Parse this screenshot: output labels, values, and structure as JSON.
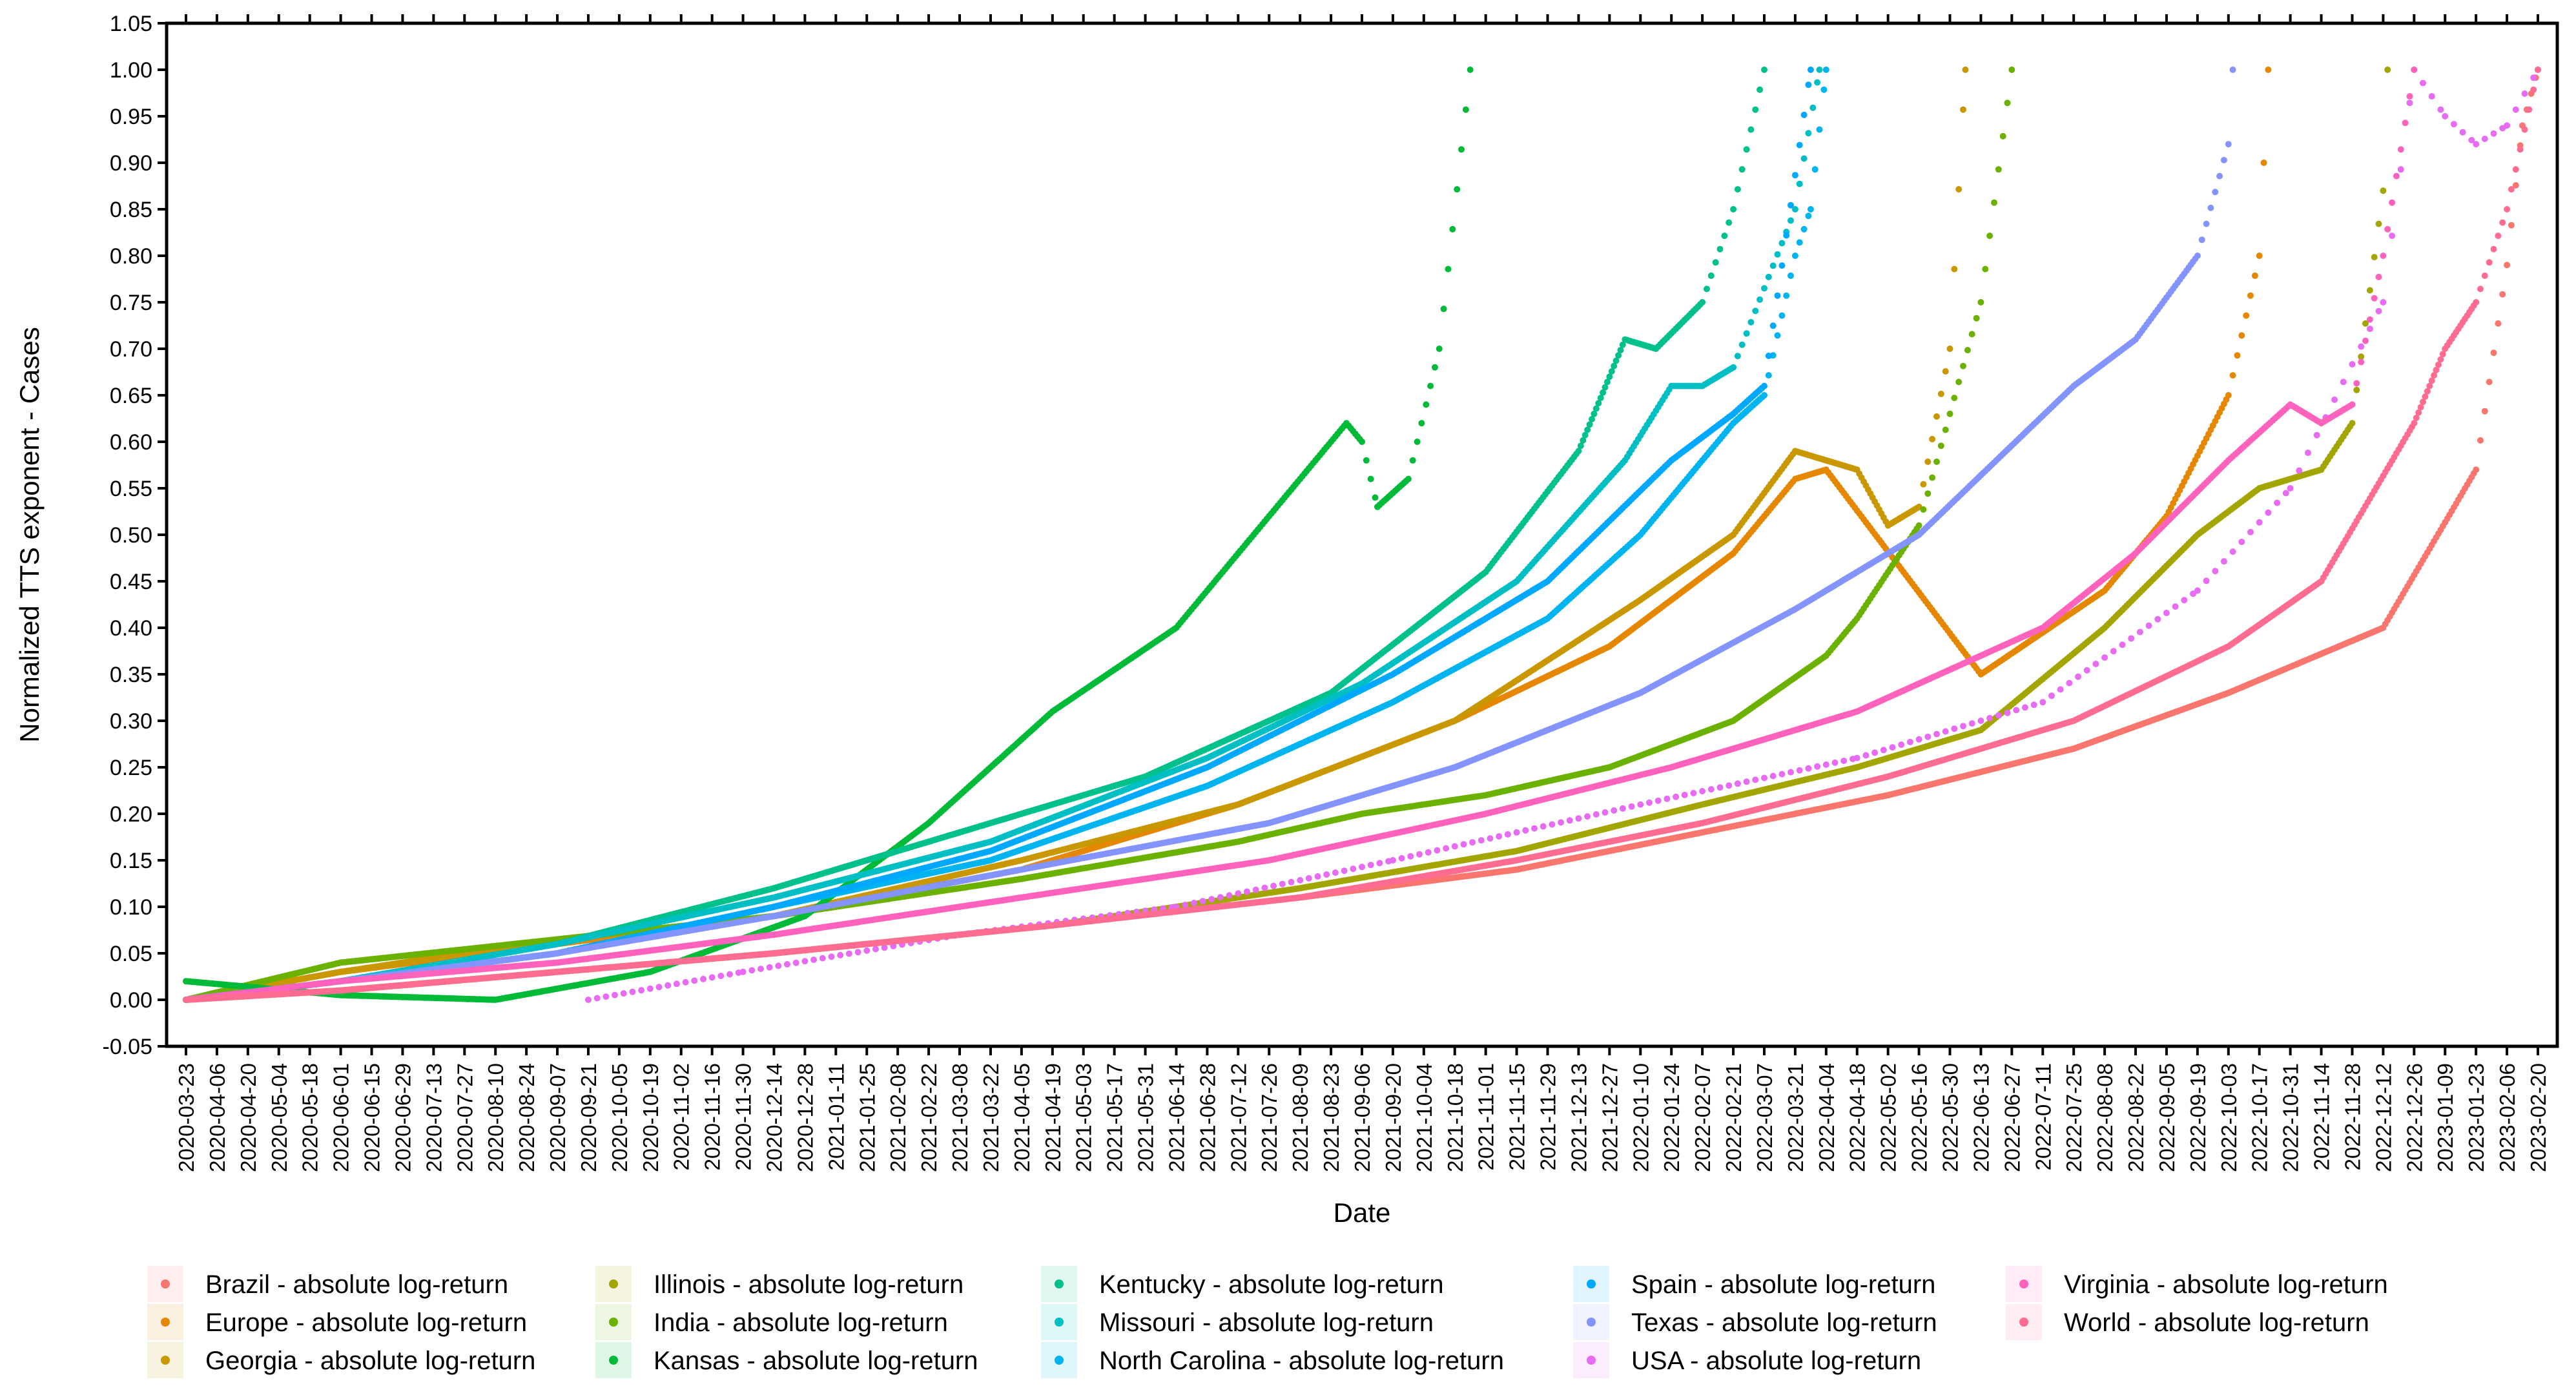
{
  "chart_data": {
    "type": "scatter",
    "title": "",
    "xlabel": "Date",
    "ylabel": "Normalized TTS exponent - Cases",
    "xlim": [
      "2020-03-23",
      "2023-02-20"
    ],
    "ylim": [
      -0.05,
      1.05
    ],
    "y_ticks": [
      "-0.05",
      "0.00",
      "0.05",
      "0.10",
      "0.15",
      "0.20",
      "0.25",
      "0.30",
      "0.35",
      "0.40",
      "0.45",
      "0.50",
      "0.55",
      "0.60",
      "0.65",
      "0.70",
      "0.75",
      "0.80",
      "0.85",
      "0.90",
      "0.95",
      "1.00",
      "1.05"
    ],
    "x_ticks": [
      "2020-03-23",
      "2020-04-06",
      "2020-04-20",
      "2020-05-04",
      "2020-05-18",
      "2020-06-01",
      "2020-06-15",
      "2020-06-29",
      "2020-07-13",
      "2020-07-27",
      "2020-08-10",
      "2020-08-24",
      "2020-09-07",
      "2020-09-21",
      "2020-10-05",
      "2020-10-19",
      "2020-11-02",
      "2020-11-16",
      "2020-11-30",
      "2020-12-14",
      "2020-12-28",
      "2021-01-11",
      "2021-01-25",
      "2021-02-08",
      "2021-02-22",
      "2021-03-08",
      "2021-03-22",
      "2021-04-05",
      "2021-04-19",
      "2021-05-03",
      "2021-05-17",
      "2021-05-31",
      "2021-06-14",
      "2021-06-28",
      "2021-07-12",
      "2021-07-26",
      "2021-08-09",
      "2021-08-23",
      "2021-09-06",
      "2021-09-20",
      "2021-10-04",
      "2021-10-18",
      "2021-11-01",
      "2021-11-15",
      "2021-11-29",
      "2021-12-13",
      "2021-12-27",
      "2022-01-10",
      "2022-01-24",
      "2022-02-07",
      "2022-02-21",
      "2022-03-07",
      "2022-03-21",
      "2022-04-04",
      "2022-04-18",
      "2022-05-02",
      "2022-05-16",
      "2022-05-30",
      "2022-06-13",
      "2022-06-27",
      "2022-07-11",
      "2022-07-25",
      "2022-08-08",
      "2022-08-22",
      "2022-09-05",
      "2022-09-19",
      "2022-10-03",
      "2022-10-17",
      "2022-10-31",
      "2022-11-14",
      "2022-11-28",
      "2022-12-12",
      "2022-12-26",
      "2023-01-09",
      "2023-01-23",
      "2023-02-06",
      "2023-02-20"
    ],
    "grid": false,
    "legend_position": "bottom",
    "series": [
      {
        "name": "Brazil - absolute log-return",
        "color": "#F8766D",
        "points": [
          [
            "2020-03-23",
            0.0
          ],
          [
            "2020-06-01",
            0.01
          ],
          [
            "2020-09-07",
            0.03
          ],
          [
            "2020-12-14",
            0.05
          ],
          [
            "2021-04-19",
            0.08
          ],
          [
            "2021-08-09",
            0.11
          ],
          [
            "2021-11-15",
            0.14
          ],
          [
            "2022-02-07",
            0.18
          ],
          [
            "2022-05-02",
            0.22
          ],
          [
            "2022-07-25",
            0.27
          ],
          [
            "2022-10-03",
            0.33
          ],
          [
            "2022-12-12",
            0.4
          ],
          [
            "2023-01-23",
            0.57
          ],
          [
            "2023-02-06",
            0.79
          ],
          [
            "2023-02-13",
            0.94
          ],
          [
            "2023-02-20",
            1.0
          ]
        ]
      },
      {
        "name": "Europe - absolute log-return",
        "color": "#E58700",
        "points": [
          [
            "2020-03-23",
            0.0
          ],
          [
            "2020-06-01",
            0.03
          ],
          [
            "2020-09-07",
            0.06
          ],
          [
            "2020-12-14",
            0.09
          ],
          [
            "2021-04-05",
            0.14
          ],
          [
            "2021-07-12",
            0.21
          ],
          [
            "2021-10-18",
            0.3
          ],
          [
            "2021-12-27",
            0.38
          ],
          [
            "2022-02-21",
            0.48
          ],
          [
            "2022-03-21",
            0.56
          ],
          [
            "2022-04-04",
            0.57
          ],
          [
            "2022-06-13",
            0.35
          ],
          [
            "2022-08-08",
            0.44
          ],
          [
            "2022-09-05",
            0.52
          ],
          [
            "2022-10-03",
            0.65
          ],
          [
            "2022-10-17",
            0.8
          ],
          [
            "2022-10-21",
            1.0
          ]
        ]
      },
      {
        "name": "Georgia - absolute log-return",
        "color": "#C99800",
        "points": [
          [
            "2020-03-23",
            0.0
          ],
          [
            "2020-06-01",
            0.03
          ],
          [
            "2020-09-07",
            0.065
          ],
          [
            "2020-12-14",
            0.09
          ],
          [
            "2021-04-05",
            0.15
          ],
          [
            "2021-07-12",
            0.21
          ],
          [
            "2021-10-18",
            0.3
          ],
          [
            "2022-01-10",
            0.43
          ],
          [
            "2022-02-21",
            0.5
          ],
          [
            "2022-03-21",
            0.59
          ],
          [
            "2022-04-04",
            0.58
          ],
          [
            "2022-04-18",
            0.57
          ],
          [
            "2022-05-02",
            0.51
          ],
          [
            "2022-05-16",
            0.53
          ],
          [
            "2022-05-30",
            0.7
          ],
          [
            "2022-06-06",
            1.0
          ]
        ]
      },
      {
        "name": "Illinois - absolute log-return",
        "color": "#A3A500",
        "points": [
          [
            "2020-03-23",
            0.0
          ],
          [
            "2020-06-01",
            0.01
          ],
          [
            "2020-09-07",
            0.03
          ],
          [
            "2020-12-14",
            0.05
          ],
          [
            "2021-04-19",
            0.08
          ],
          [
            "2021-08-09",
            0.12
          ],
          [
            "2021-11-15",
            0.16
          ],
          [
            "2022-02-07",
            0.21
          ],
          [
            "2022-04-18",
            0.25
          ],
          [
            "2022-06-13",
            0.29
          ],
          [
            "2022-08-08",
            0.4
          ],
          [
            "2022-09-19",
            0.5
          ],
          [
            "2022-10-17",
            0.55
          ],
          [
            "2022-11-14",
            0.57
          ],
          [
            "2022-11-28",
            0.62
          ],
          [
            "2022-12-12",
            0.87
          ],
          [
            "2022-12-14",
            1.0
          ]
        ]
      },
      {
        "name": "India - absolute log-return",
        "color": "#6BB100",
        "points": [
          [
            "2020-03-23",
            0.0
          ],
          [
            "2020-06-01",
            0.04
          ],
          [
            "2020-09-07",
            0.065
          ],
          [
            "2020-12-14",
            0.09
          ],
          [
            "2021-04-05",
            0.13
          ],
          [
            "2021-07-12",
            0.17
          ],
          [
            "2021-09-06",
            0.2
          ],
          [
            "2021-11-01",
            0.22
          ],
          [
            "2021-12-27",
            0.25
          ],
          [
            "2022-02-21",
            0.3
          ],
          [
            "2022-04-04",
            0.37
          ],
          [
            "2022-04-18",
            0.41
          ],
          [
            "2022-05-16",
            0.51
          ],
          [
            "2022-06-13",
            0.75
          ],
          [
            "2022-06-27",
            1.0
          ]
        ]
      },
      {
        "name": "Kansas - absolute log-return",
        "color": "#00BA38",
        "points": [
          [
            "2020-03-23",
            0.02
          ],
          [
            "2020-06-01",
            0.005
          ],
          [
            "2020-08-10",
            0.0
          ],
          [
            "2020-10-19",
            0.03
          ],
          [
            "2020-12-28",
            0.09
          ],
          [
            "2021-02-22",
            0.19
          ],
          [
            "2021-04-19",
            0.31
          ],
          [
            "2021-06-14",
            0.4
          ],
          [
            "2021-07-12",
            0.48
          ],
          [
            "2021-08-09",
            0.56
          ],
          [
            "2021-08-30",
            0.62
          ],
          [
            "2021-09-06",
            0.6
          ],
          [
            "2021-09-13",
            0.53
          ],
          [
            "2021-09-27",
            0.56
          ],
          [
            "2021-10-11",
            0.7
          ],
          [
            "2021-10-25",
            1.0
          ]
        ]
      },
      {
        "name": "Kentucky - absolute log-return",
        "color": "#00C08B",
        "points": [
          [
            "2020-03-23",
            0.0
          ],
          [
            "2020-06-01",
            0.02
          ],
          [
            "2020-09-07",
            0.06
          ],
          [
            "2020-12-14",
            0.12
          ],
          [
            "2021-03-08",
            0.18
          ],
          [
            "2021-05-31",
            0.24
          ],
          [
            "2021-08-23",
            0.33
          ],
          [
            "2021-11-01",
            0.46
          ],
          [
            "2021-12-13",
            0.59
          ],
          [
            "2022-01-03",
            0.71
          ],
          [
            "2022-01-17",
            0.7
          ],
          [
            "2022-02-07",
            0.75
          ],
          [
            "2022-02-21",
            0.85
          ],
          [
            "2022-03-07",
            1.0
          ]
        ]
      },
      {
        "name": "Missouri - absolute log-return",
        "color": "#00BFC4",
        "points": [
          [
            "2020-03-23",
            0.0
          ],
          [
            "2020-06-01",
            0.02
          ],
          [
            "2020-09-07",
            0.06
          ],
          [
            "2020-12-14",
            0.11
          ],
          [
            "2021-03-22",
            0.17
          ],
          [
            "2021-06-28",
            0.26
          ],
          [
            "2021-09-06",
            0.34
          ],
          [
            "2021-11-15",
            0.45
          ],
          [
            "2022-01-03",
            0.58
          ],
          [
            "2022-01-24",
            0.66
          ],
          [
            "2022-02-07",
            0.66
          ],
          [
            "2022-02-21",
            0.68
          ],
          [
            "2022-03-21",
            0.85
          ],
          [
            "2022-04-01",
            1.0
          ]
        ]
      },
      {
        "name": "North Carolina - absolute log-return",
        "color": "#00B4F0",
        "points": [
          [
            "2020-03-23",
            0.0
          ],
          [
            "2020-06-01",
            0.02
          ],
          [
            "2020-09-07",
            0.05
          ],
          [
            "2020-12-14",
            0.1
          ],
          [
            "2021-03-22",
            0.15
          ],
          [
            "2021-06-28",
            0.23
          ],
          [
            "2021-09-20",
            0.32
          ],
          [
            "2021-11-29",
            0.41
          ],
          [
            "2022-01-10",
            0.5
          ],
          [
            "2022-02-07",
            0.58
          ],
          [
            "2022-02-21",
            0.62
          ],
          [
            "2022-03-07",
            0.65
          ],
          [
            "2022-03-21",
            0.8
          ],
          [
            "2022-03-28",
            0.85
          ],
          [
            "2022-04-04",
            1.0
          ]
        ]
      },
      {
        "name": "Spain - absolute log-return",
        "color": "#00A9FF",
        "points": [
          [
            "2020-03-23",
            0.0
          ],
          [
            "2020-06-01",
            0.02
          ],
          [
            "2020-09-07",
            0.05
          ],
          [
            "2020-12-14",
            0.1
          ],
          [
            "2021-03-22",
            0.16
          ],
          [
            "2021-06-28",
            0.25
          ],
          [
            "2021-09-20",
            0.35
          ],
          [
            "2021-11-29",
            0.45
          ],
          [
            "2022-01-24",
            0.58
          ],
          [
            "2022-02-21",
            0.63
          ],
          [
            "2022-03-07",
            0.66
          ],
          [
            "2022-03-28",
            1.0
          ]
        ]
      },
      {
        "name": "Texas - absolute log-return",
        "color": "#8494FF",
        "points": [
          [
            "2020-03-23",
            0.0
          ],
          [
            "2020-06-01",
            0.02
          ],
          [
            "2020-09-07",
            0.05
          ],
          [
            "2020-12-14",
            0.09
          ],
          [
            "2021-04-05",
            0.14
          ],
          [
            "2021-07-26",
            0.19
          ],
          [
            "2021-10-18",
            0.25
          ],
          [
            "2022-01-10",
            0.33
          ],
          [
            "2022-03-21",
            0.42
          ],
          [
            "2022-05-16",
            0.5
          ],
          [
            "2022-07-25",
            0.66
          ],
          [
            "2022-08-22",
            0.71
          ],
          [
            "2022-09-19",
            0.8
          ],
          [
            "2022-10-03",
            0.92
          ],
          [
            "2022-10-05",
            1.0
          ]
        ]
      },
      {
        "name": "USA - absolute log-return",
        "color": "#E76BF3",
        "points": [
          [
            "2020-09-21",
            0.0
          ],
          [
            "2020-11-30",
            0.03
          ],
          [
            "2021-03-08",
            0.07
          ],
          [
            "2021-06-14",
            0.1
          ],
          [
            "2021-09-20",
            0.15
          ],
          [
            "2022-01-10",
            0.21
          ],
          [
            "2022-04-18",
            0.26
          ],
          [
            "2022-07-11",
            0.32
          ],
          [
            "2022-09-19",
            0.44
          ],
          [
            "2022-10-31",
            0.55
          ],
          [
            "2022-12-12",
            0.75
          ],
          [
            "2022-12-26",
            1.0
          ],
          [
            "2023-01-09",
            0.95
          ],
          [
            "2023-01-23",
            0.92
          ],
          [
            "2023-02-06",
            0.94
          ],
          [
            "2023-02-20",
            1.0
          ]
        ]
      },
      {
        "name": "Virginia - absolute log-return",
        "color": "#FF62BC",
        "points": [
          [
            "2020-03-23",
            0.0
          ],
          [
            "2020-06-01",
            0.02
          ],
          [
            "2020-09-07",
            0.04
          ],
          [
            "2020-12-14",
            0.07
          ],
          [
            "2021-04-05",
            0.11
          ],
          [
            "2021-07-26",
            0.15
          ],
          [
            "2021-11-01",
            0.2
          ],
          [
            "2022-01-24",
            0.25
          ],
          [
            "2022-04-18",
            0.31
          ],
          [
            "2022-07-11",
            0.4
          ],
          [
            "2022-08-22",
            0.48
          ],
          [
            "2022-10-03",
            0.58
          ],
          [
            "2022-10-31",
            0.64
          ],
          [
            "2022-11-14",
            0.62
          ],
          [
            "2022-11-28",
            0.64
          ],
          [
            "2022-12-12",
            0.8
          ],
          [
            "2022-12-26",
            1.0
          ]
        ]
      },
      {
        "name": "World - absolute log-return",
        "color": "#FF6C91",
        "points": [
          [
            "2020-03-23",
            0.0
          ],
          [
            "2020-06-01",
            0.01
          ],
          [
            "2020-09-07",
            0.03
          ],
          [
            "2020-12-14",
            0.05
          ],
          [
            "2021-04-19",
            0.08
          ],
          [
            "2021-08-09",
            0.11
          ],
          [
            "2021-11-15",
            0.15
          ],
          [
            "2022-02-07",
            0.19
          ],
          [
            "2022-05-02",
            0.24
          ],
          [
            "2022-07-25",
            0.3
          ],
          [
            "2022-10-03",
            0.38
          ],
          [
            "2022-11-14",
            0.45
          ],
          [
            "2022-12-26",
            0.62
          ],
          [
            "2023-01-09",
            0.7
          ],
          [
            "2023-01-23",
            0.75
          ],
          [
            "2023-02-06",
            0.85
          ],
          [
            "2023-02-20",
            1.0
          ]
        ]
      }
    ]
  }
}
